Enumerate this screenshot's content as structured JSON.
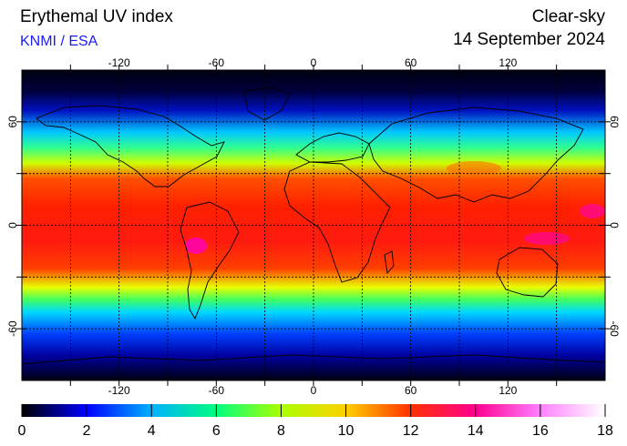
{
  "header": {
    "title": "Erythemal UV index",
    "credit": "KNMI / ESA",
    "mode": "Clear-sky",
    "date": "14 September 2024"
  },
  "map": {
    "lon_range": [
      -180,
      180
    ],
    "lat_range": [
      -90,
      90
    ],
    "lon_ticks": [
      "-120",
      "-60",
      "0",
      "60",
      "120"
    ],
    "lat_ticks": [
      "60",
      "0",
      "-60"
    ],
    "grid": true
  },
  "colorbar": {
    "min": 0,
    "max": 18,
    "ticks": [
      "0",
      "2",
      "4",
      "6",
      "8",
      "10",
      "12",
      "14",
      "16",
      "18"
    ],
    "colors": [
      "#000000",
      "#0000ff",
      "#00b0ff",
      "#00ff80",
      "#aaff00",
      "#ffd000",
      "#ff3000",
      "#ff0090",
      "#ff80ff",
      "#ffffff"
    ]
  }
}
